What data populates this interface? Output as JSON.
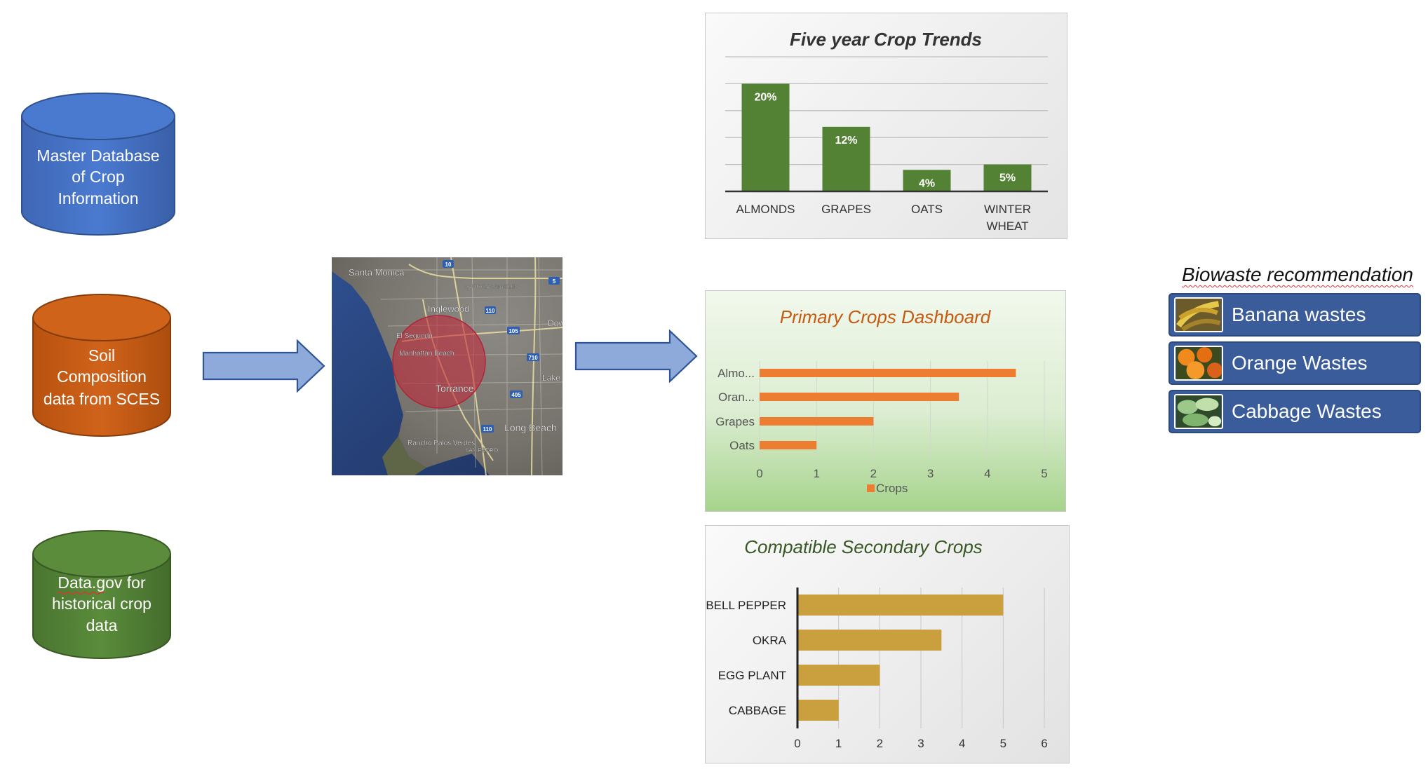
{
  "sources": [
    {
      "label": "Master Database of Crop Information",
      "lines": [
        "Master Database",
        "of Crop",
        "Information"
      ],
      "color": "#4472c4"
    },
    {
      "label": "Soil Composition data from SCES",
      "lines": [
        "Soil",
        "Composition",
        "data from SCES"
      ],
      "color": "#c55a11"
    },
    {
      "label": "Data.gov for historical crop data",
      "lines": [
        "Data.gov for",
        "historical crop",
        "data"
      ],
      "color": "#548235"
    }
  ],
  "map": {
    "labels": [
      "Santa Monica",
      "SOUTH LOS ANGELES",
      "Inglewood",
      "El Segundo",
      "Manhattan Beach",
      "Torrance",
      "Long Beach",
      "Rancho Palos Verdes",
      "SAN PEDRO",
      "Dow",
      "Lake"
    ],
    "highway_shields": [
      "10",
      "5",
      "110",
      "105",
      "710",
      "405",
      "110"
    ]
  },
  "trends": {
    "title": "Five year Crop Trends",
    "bar_color": "#548235",
    "chart_data": {
      "type": "bar",
      "categories": [
        "ALMONDS",
        "GRAPES",
        "OATS",
        "WINTER WHEAT"
      ],
      "values": [
        20,
        12,
        4,
        5
      ],
      "data_labels": [
        "20%",
        "12%",
        "4%",
        "5%"
      ],
      "ylim": [
        0,
        25
      ],
      "grid": true
    }
  },
  "primary": {
    "title": "Primary Crops Dashboard",
    "bar_color": "#ed7d31",
    "chart_data": {
      "type": "bar",
      "orientation": "horizontal",
      "categories": [
        "Almo...",
        "Oran...",
        "Grapes",
        "Oats"
      ],
      "series": [
        {
          "name": "Crops",
          "values": [
            4.5,
            3.5,
            2,
            1
          ]
        }
      ],
      "xlim": [
        0,
        5
      ],
      "ticks": [
        "0",
        "1",
        "2",
        "3",
        "4",
        "5"
      ],
      "legend": "bottom",
      "grid": true
    }
  },
  "secondary": {
    "title": "Compatible Secondary Crops",
    "bar_color": "#c9a03d",
    "chart_data": {
      "type": "bar",
      "orientation": "horizontal",
      "categories": [
        "BELL PEPPER",
        "OKRA",
        "EGG PLANT",
        "CABBAGE"
      ],
      "values": [
        5,
        3.5,
        2,
        1
      ],
      "xlim": [
        0,
        6
      ],
      "ticks": [
        "0",
        "1",
        "2",
        "3",
        "4",
        "5",
        "6"
      ],
      "grid": true
    }
  },
  "biowaste": {
    "title": "Biowaste recommendation",
    "items": [
      {
        "label": "Banana wastes",
        "icon": "banana-waste-icon"
      },
      {
        "label": "Orange Wastes",
        "icon": "orange-waste-icon"
      },
      {
        "label": "Cabbage Wastes",
        "icon": "cabbage-waste-icon"
      }
    ]
  }
}
